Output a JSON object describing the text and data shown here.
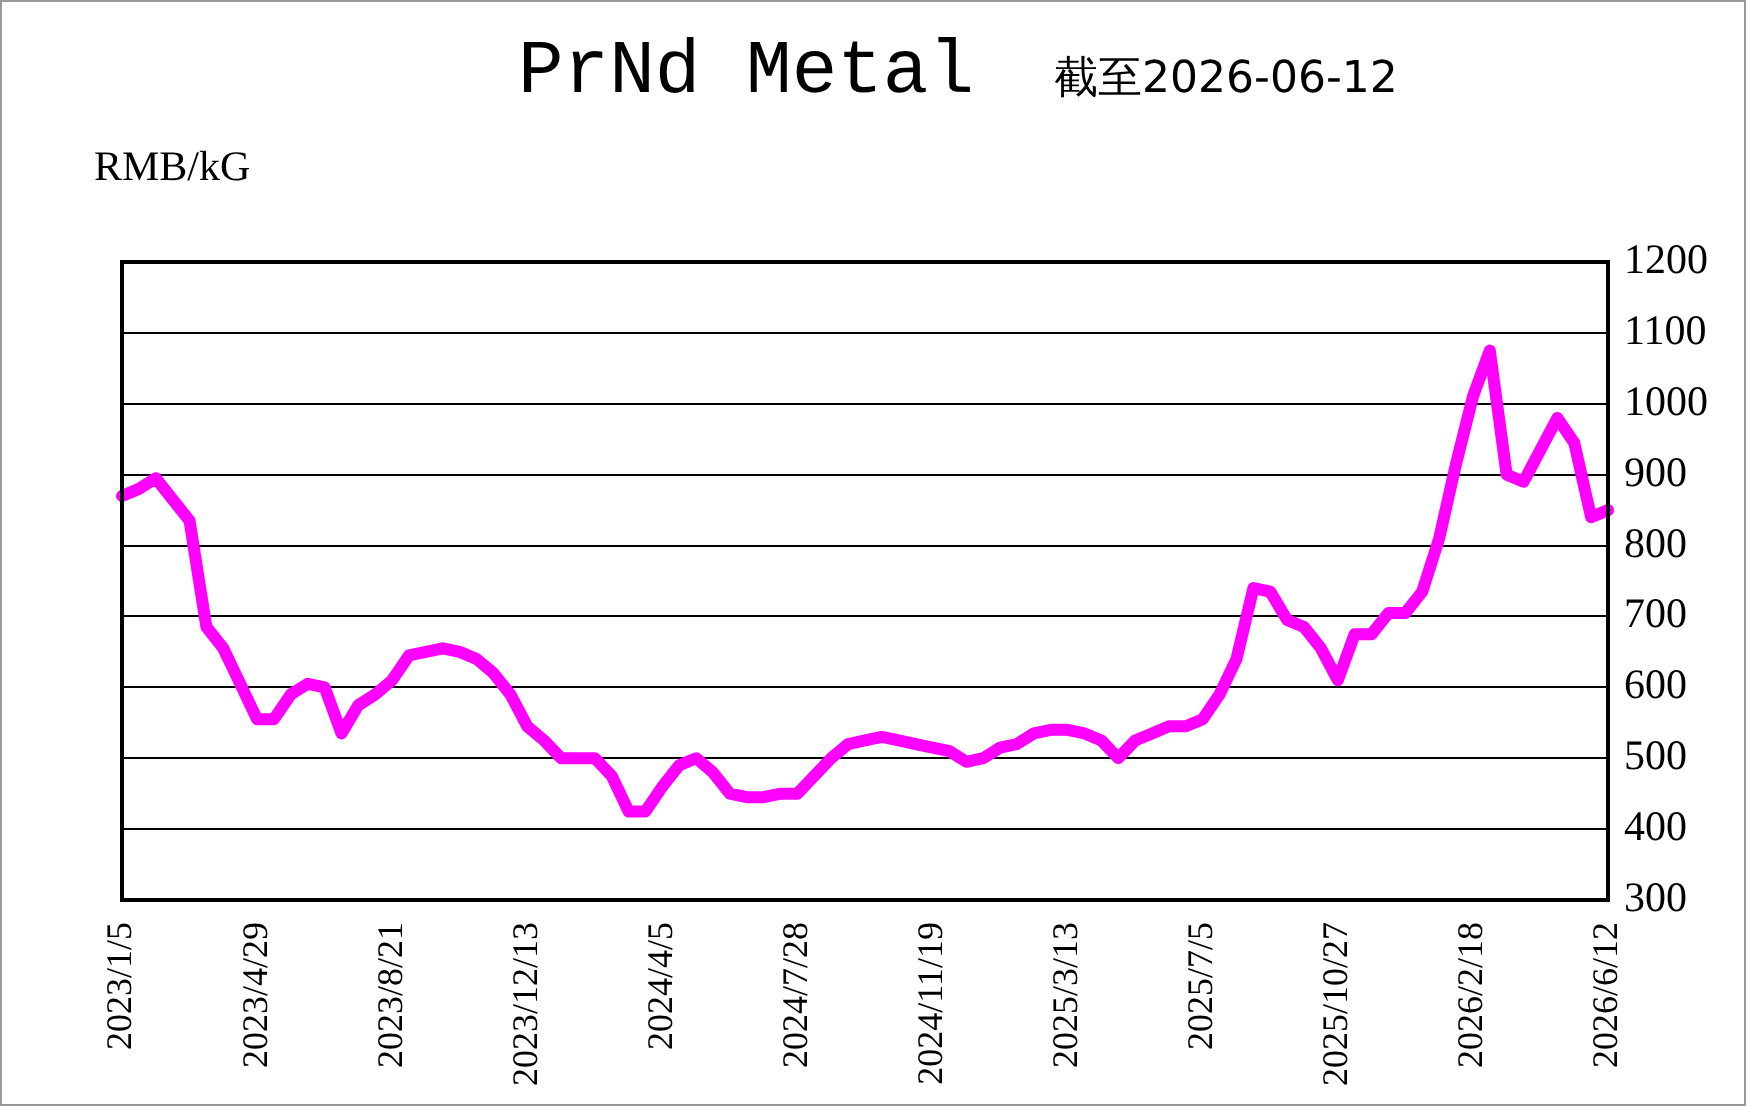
{
  "chart_data": {
    "type": "line",
    "title": "PrNd Metal",
    "subtitle": "截至2026-06-12",
    "ylabel": "RMB/kG",
    "categories": [
      "2023/1/5",
      null,
      null,
      null,
      null,
      null,
      null,
      null,
      "2023/4/29",
      null,
      null,
      null,
      null,
      null,
      null,
      null,
      "2023/8/21",
      null,
      null,
      null,
      null,
      null,
      null,
      null,
      "2023/12/13",
      null,
      null,
      null,
      null,
      null,
      null,
      null,
      "2024/4/5",
      null,
      null,
      null,
      null,
      null,
      null,
      null,
      "2024/7/28",
      null,
      null,
      null,
      null,
      null,
      null,
      null,
      "2024/11/19",
      null,
      null,
      null,
      null,
      null,
      null,
      null,
      "2025/3/13",
      null,
      null,
      null,
      null,
      null,
      null,
      null,
      "2025/7/5",
      null,
      null,
      null,
      null,
      null,
      null,
      null,
      "2025/10/27",
      null,
      null,
      null,
      null,
      null,
      null,
      null,
      "2026/2/18",
      null,
      null,
      null,
      null,
      null,
      null,
      null,
      "2026/6/12"
    ],
    "series": [
      {
        "color": "#ff00ff",
        "values": [
          870,
          880,
          895,
          865,
          835,
          685,
          655,
          605,
          555,
          555,
          590,
          605,
          600,
          535,
          575,
          590,
          610,
          645,
          650,
          655,
          650,
          640,
          620,
          590,
          545,
          525,
          500,
          500,
          500,
          475,
          425,
          425,
          460,
          490,
          500,
          480,
          450,
          445,
          445,
          450,
          450,
          475,
          500,
          520,
          525,
          530,
          525,
          520,
          515,
          510,
          495,
          500,
          515,
          520,
          535,
          540,
          540,
          535,
          525,
          500,
          525,
          535,
          545,
          545,
          555,
          590,
          640,
          740,
          735,
          695,
          685,
          655,
          610,
          675,
          675,
          705,
          705,
          735,
          810,
          915,
          1010,
          1075,
          900,
          890,
          935,
          980,
          945,
          840,
          850
        ]
      }
    ],
    "ylim": [
      300,
      1200
    ],
    "yticks": [
      300,
      400,
      500,
      600,
      700,
      800,
      900,
      1000,
      1100,
      1200
    ],
    "grid": "y"
  }
}
